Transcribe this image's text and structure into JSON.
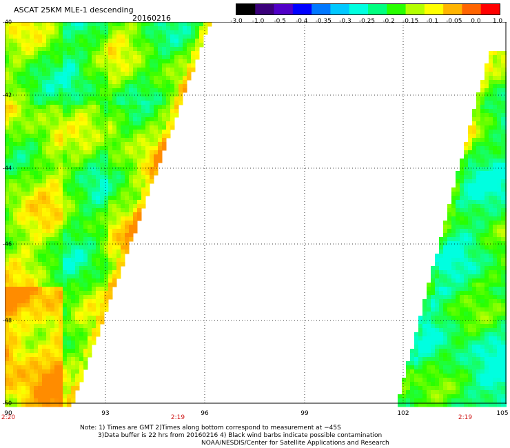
{
  "header": {
    "title": "ASCAT 25KM MLE-1 descending",
    "date": "20160216"
  },
  "colorbar": {
    "labels": [
      "-3.0",
      "-1.0",
      "-0.5",
      "-0.4",
      "-0.35",
      "-0.3",
      "-0.25",
      "-0.2",
      "-0.15",
      "-0.1",
      "-0.05",
      "0.0",
      "1.0"
    ],
    "colors": [
      "#000000",
      "#3a007a",
      "#5000c8",
      "#0000ff",
      "#0078ff",
      "#00c8ff",
      "#00ffe0",
      "#00ff80",
      "#28ff00",
      "#b4ff00",
      "#ffff00",
      "#ffb400",
      "#ff6400",
      "#ff0000"
    ]
  },
  "map": {
    "lat_labels": [
      "-40",
      "-42",
      "-44",
      "-46",
      "-48",
      "-50"
    ],
    "lon_labels": [
      "90",
      "93",
      "96",
      "99",
      "102",
      "105"
    ],
    "time_labels": [
      "2:20",
      "2:19",
      "2:19"
    ],
    "colors": {
      "grid": "#000000",
      "time": "#d01c1c",
      "field_low": "#00ffe0",
      "field_mid": "#28ff00",
      "field_high": "#ffff00",
      "field_max": "#ff8c00"
    }
  },
  "notes": [
    "Note: 1) Times are GMT 2)Times along bottom correspond to measurement at −45S",
    "3)Data buffer is 22 hrs from 20160216 4) Black wind barbs indicate possible contamination",
    "NOAA/NESDIS/Center for Satellite Applications and Research"
  ]
}
